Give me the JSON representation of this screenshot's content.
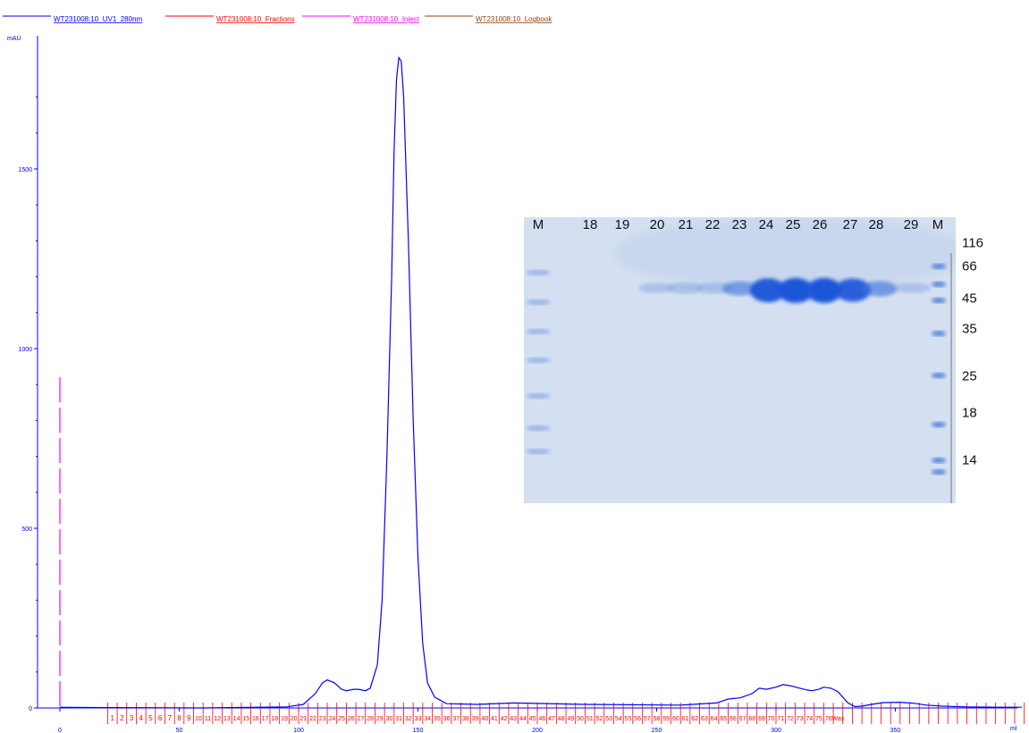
{
  "chart_data": [
    {
      "type": "line",
      "legend": [
        {
          "name": "WT231008:10_UV1_280nm",
          "color": "#0000ff"
        },
        {
          "name": "WT231008:10_Fractions",
          "color": "#ff0000"
        },
        {
          "name": "WT231008:10_Inject",
          "color": "#ff00ff"
        },
        {
          "name": "WT231008:10_Logbook",
          "color": "#8b4513"
        }
      ],
      "legend_position": "top-left",
      "ylabel": "mAU",
      "xlabel": "ml",
      "xlim": [
        0,
        405
      ],
      "ylim": [
        0,
        1800
      ],
      "x_ticks": [
        0,
        50,
        100,
        150,
        200,
        250,
        300,
        350
      ],
      "y_ticks": [
        0,
        500,
        1000,
        1500
      ],
      "series": [
        {
          "name": "WT231008:10_UV1_280nm",
          "points": [
            [
              0,
              2
            ],
            [
              20,
              1
            ],
            [
              60,
              0
            ],
            [
              95,
              3
            ],
            [
              102,
              10
            ],
            [
              107,
              40
            ],
            [
              110,
              70
            ],
            [
              112,
              78
            ],
            [
              115,
              70
            ],
            [
              118,
              52
            ],
            [
              120,
              48
            ],
            [
              123,
              52
            ],
            [
              125,
              52
            ],
            [
              128,
              48
            ],
            [
              130,
              55
            ],
            [
              133,
              120
            ],
            [
              135,
              300
            ],
            [
              137,
              700
            ],
            [
              139,
              1200
            ],
            [
              140,
              1550
            ],
            [
              141,
              1750
            ],
            [
              142,
              1810
            ],
            [
              143,
              1800
            ],
            [
              144,
              1700
            ],
            [
              146,
              1300
            ],
            [
              148,
              800
            ],
            [
              150,
              420
            ],
            [
              152,
              180
            ],
            [
              154,
              70
            ],
            [
              157,
              30
            ],
            [
              162,
              12
            ],
            [
              175,
              10
            ],
            [
              190,
              14
            ],
            [
              220,
              10
            ],
            [
              260,
              8
            ],
            [
              275,
              14
            ],
            [
              280,
              25
            ],
            [
              285,
              28
            ],
            [
              290,
              40
            ],
            [
              293,
              55
            ],
            [
              296,
              52
            ],
            [
              300,
              58
            ],
            [
              303,
              65
            ],
            [
              306,
              62
            ],
            [
              310,
              55
            ],
            [
              313,
              50
            ],
            [
              315,
              48
            ],
            [
              318,
              52
            ],
            [
              320,
              58
            ],
            [
              323,
              55
            ],
            [
              326,
              45
            ],
            [
              330,
              15
            ],
            [
              333,
              4
            ],
            [
              336,
              5
            ],
            [
              340,
              10
            ],
            [
              345,
              15
            ],
            [
              352,
              16
            ],
            [
              358,
              13
            ],
            [
              363,
              8
            ],
            [
              370,
              5
            ],
            [
              380,
              3
            ],
            [
              395,
              2
            ],
            [
              403,
              2
            ]
          ]
        }
      ],
      "inject_x": 0,
      "inject_top": 920,
      "fractions": {
        "boundaries": [
          20,
          24,
          28,
          32,
          36,
          40,
          44,
          48,
          52,
          56,
          60,
          64,
          68,
          72,
          76,
          80,
          84,
          88,
          92,
          96,
          100,
          104,
          108,
          112,
          116,
          120,
          124,
          128,
          132,
          136,
          140,
          144,
          148,
          152,
          156,
          160,
          164,
          168,
          172,
          176,
          180,
          184,
          188,
          192,
          196,
          200,
          204,
          208,
          212,
          216,
          220,
          224,
          228,
          232,
          236,
          240,
          244,
          248,
          252,
          256,
          260,
          264,
          268,
          272,
          276,
          280,
          284,
          288,
          292,
          296,
          300,
          304,
          308,
          312,
          316,
          320,
          324,
          328,
          332,
          336,
          340,
          344,
          348,
          352,
          356,
          360,
          364,
          368,
          372,
          376,
          380,
          384,
          388,
          392,
          396,
          400,
          404
        ],
        "labels": [
          "1",
          "2",
          "3",
          "4",
          "5",
          "6",
          "7",
          "8",
          "9",
          "10",
          "11",
          "12",
          "13",
          "14",
          "15",
          "16",
          "17",
          "18",
          "19",
          "20",
          "21",
          "22",
          "23",
          "24",
          "25",
          "26",
          "27",
          "28",
          "29",
          "30",
          "31",
          "32",
          "33",
          "34",
          "35",
          "36",
          "37",
          "38",
          "39",
          "40",
          "41",
          "42",
          "43",
          "44",
          "45",
          "46",
          "47",
          "48",
          "49",
          "50",
          "51",
          "52",
          "53",
          "54",
          "55",
          "56",
          "57",
          "58",
          "59",
          "60",
          "61",
          "62",
          "63",
          "64",
          "65",
          "66",
          "67",
          "68",
          "69",
          "70",
          "71",
          "72",
          "73",
          "74",
          "75",
          "76",
          "Was"
        ]
      }
    },
    {
      "type": "gel",
      "lane_labels": [
        "M",
        "18",
        "19",
        "20",
        "21",
        "22",
        "23",
        "24",
        "25",
        "26",
        "27",
        "28",
        "29",
        "M"
      ],
      "mw_markers": [
        "116",
        "66",
        "45",
        "35",
        "25",
        "18",
        "14"
      ],
      "band_intensity": [
        0,
        0,
        0,
        0.25,
        0.3,
        0.3,
        0.45,
        0.95,
        1,
        1,
        0.9,
        0.5,
        0.25,
        0
      ]
    }
  ]
}
